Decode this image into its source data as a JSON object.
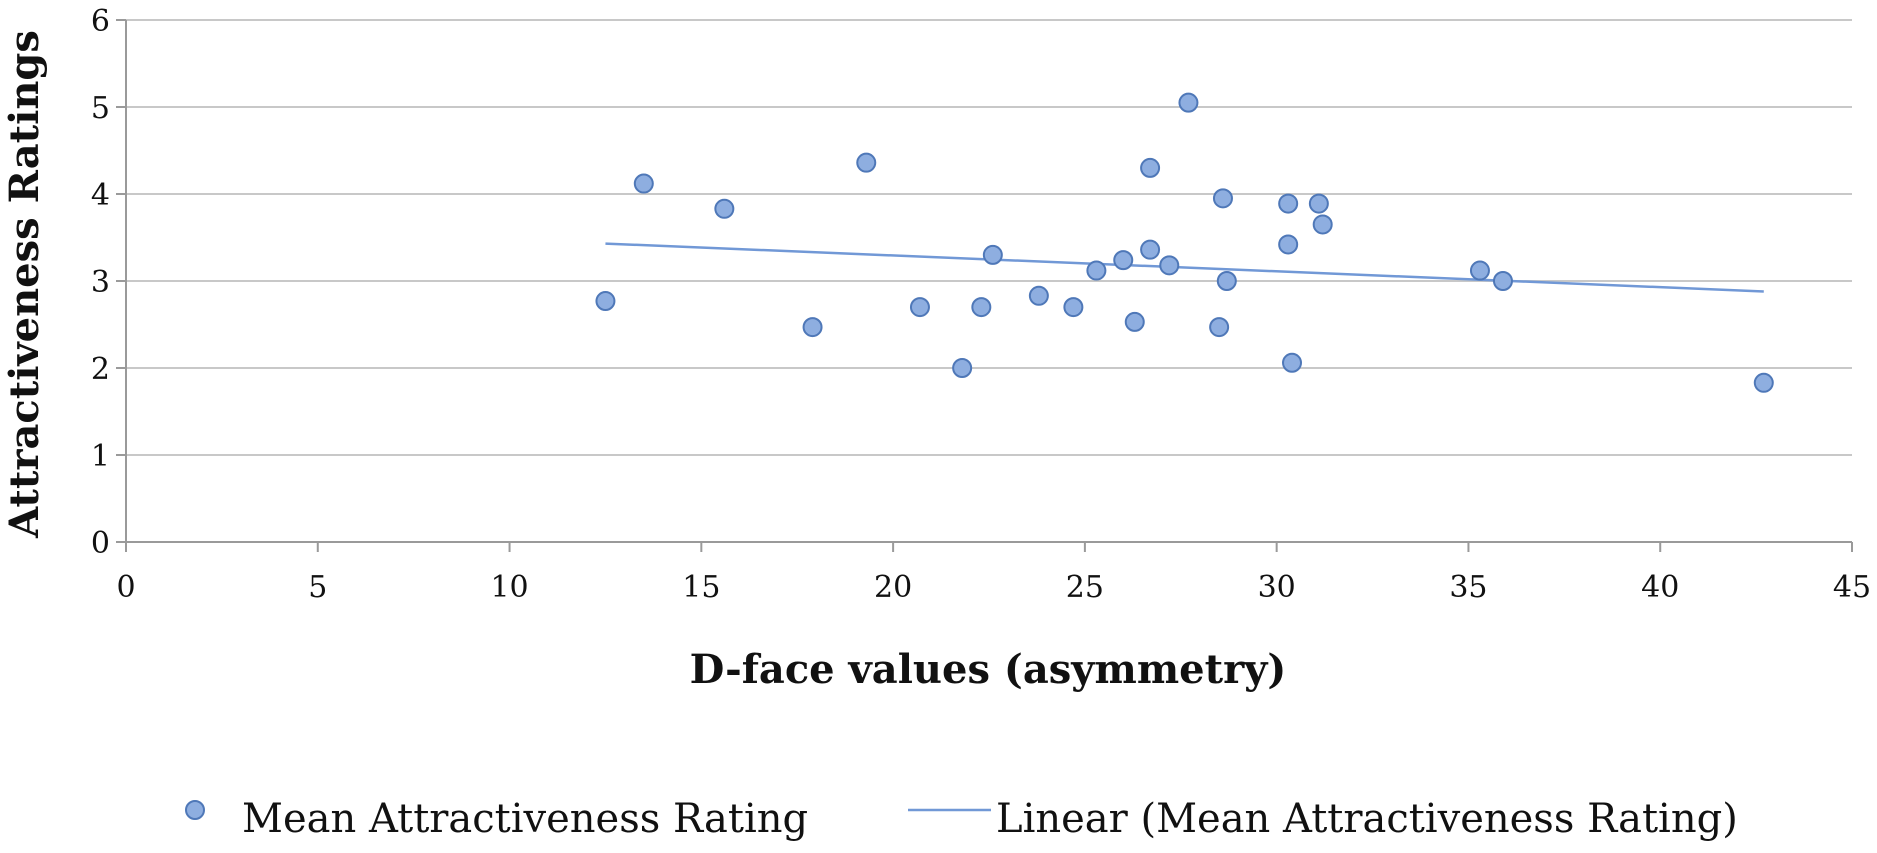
{
  "chart_data": {
    "type": "scatter",
    "title": "",
    "xlabel": "D-face values (asymmetry)",
    "ylabel": "Attractiveness Ratings",
    "xlim": [
      0,
      45
    ],
    "ylim": [
      0,
      6
    ],
    "x_ticks": [
      "0",
      "5",
      "10",
      "15",
      "20",
      "25",
      "30",
      "35",
      "40",
      "45"
    ],
    "y_ticks": [
      "0",
      "1",
      "2",
      "3",
      "4",
      "5",
      "6"
    ],
    "grid": true,
    "legend_position": "bottom",
    "series": [
      {
        "name": "Mean Attractiveness Rating",
        "color": "#8eaee0",
        "points": [
          [
            12.5,
            2.77
          ],
          [
            13.5,
            4.12
          ],
          [
            15.6,
            3.83
          ],
          [
            17.9,
            2.47
          ],
          [
            19.3,
            4.36
          ],
          [
            20.7,
            2.7
          ],
          [
            21.8,
            2.0
          ],
          [
            22.3,
            2.7
          ],
          [
            22.6,
            3.3
          ],
          [
            23.8,
            2.83
          ],
          [
            24.7,
            2.7
          ],
          [
            25.3,
            3.12
          ],
          [
            26.0,
            3.24
          ],
          [
            26.3,
            2.53
          ],
          [
            26.7,
            4.3
          ],
          [
            26.7,
            3.36
          ],
          [
            27.2,
            3.18
          ],
          [
            27.7,
            5.05
          ],
          [
            28.5,
            2.47
          ],
          [
            28.6,
            3.95
          ],
          [
            28.7,
            3.0
          ],
          [
            30.3,
            3.89
          ],
          [
            30.3,
            3.42
          ],
          [
            30.4,
            2.06
          ],
          [
            31.1,
            3.89
          ],
          [
            31.2,
            3.65
          ],
          [
            35.3,
            3.12
          ],
          [
            35.9,
            3.0
          ],
          [
            42.7,
            1.83
          ]
        ]
      }
    ],
    "trendline": {
      "name": "Linear (Mean Attractiveness Rating)",
      "color": "#7198d6",
      "x_start": 12.5,
      "y_start": 3.43,
      "x_end": 42.7,
      "y_end": 2.88
    }
  }
}
